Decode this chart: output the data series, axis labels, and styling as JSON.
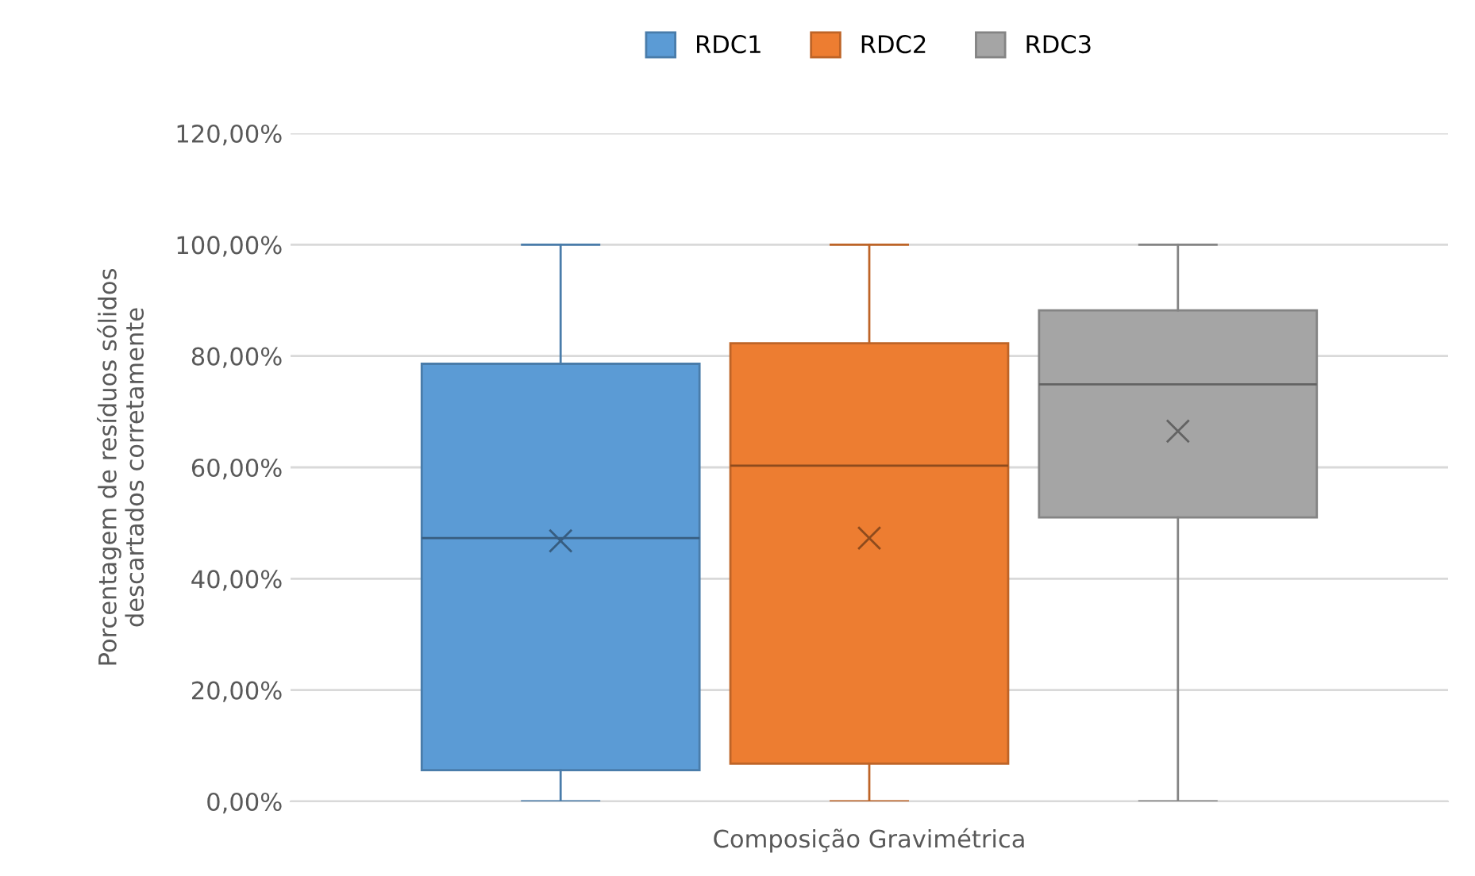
{
  "chart_data": {
    "type": "box",
    "categories": [
      "Composição Gravimétrica"
    ],
    "ylabel": "Porcentagem de resíduos sólidos\ndescartados corretamente",
    "ylim": [
      0,
      120
    ],
    "yticks": [
      {
        "value": 0,
        "label": "0,00%"
      },
      {
        "value": 20,
        "label": "20,00%"
      },
      {
        "value": 40,
        "label": "40,00%"
      },
      {
        "value": 60,
        "label": "60,00%"
      },
      {
        "value": 80,
        "label": "80,00%"
      },
      {
        "value": 100,
        "label": "100,00%"
      },
      {
        "value": 120,
        "label": "120,00%"
      }
    ],
    "grid": "y",
    "legend": "top",
    "marker": "cross",
    "series": [
      {
        "name": "RDC1",
        "color": "#5b9bd5",
        "boxes": [
          {
            "low": 0,
            "q1": 5.6,
            "median": 47.3,
            "q3": 78.6,
            "high": 100,
            "mean": 46.8
          }
        ]
      },
      {
        "name": "RDC2",
        "color": "#ed7d31",
        "boxes": [
          {
            "low": 0,
            "q1": 6.8,
            "median": 60.3,
            "q3": 82.3,
            "high": 100,
            "mean": 47.3
          }
        ]
      },
      {
        "name": "RDC3",
        "color": "#a5a5a5",
        "boxes": [
          {
            "low": 0,
            "q1": 51,
            "median": 74.9,
            "q3": 88.2,
            "high": 100,
            "mean": 66.5
          }
        ]
      }
    ]
  }
}
